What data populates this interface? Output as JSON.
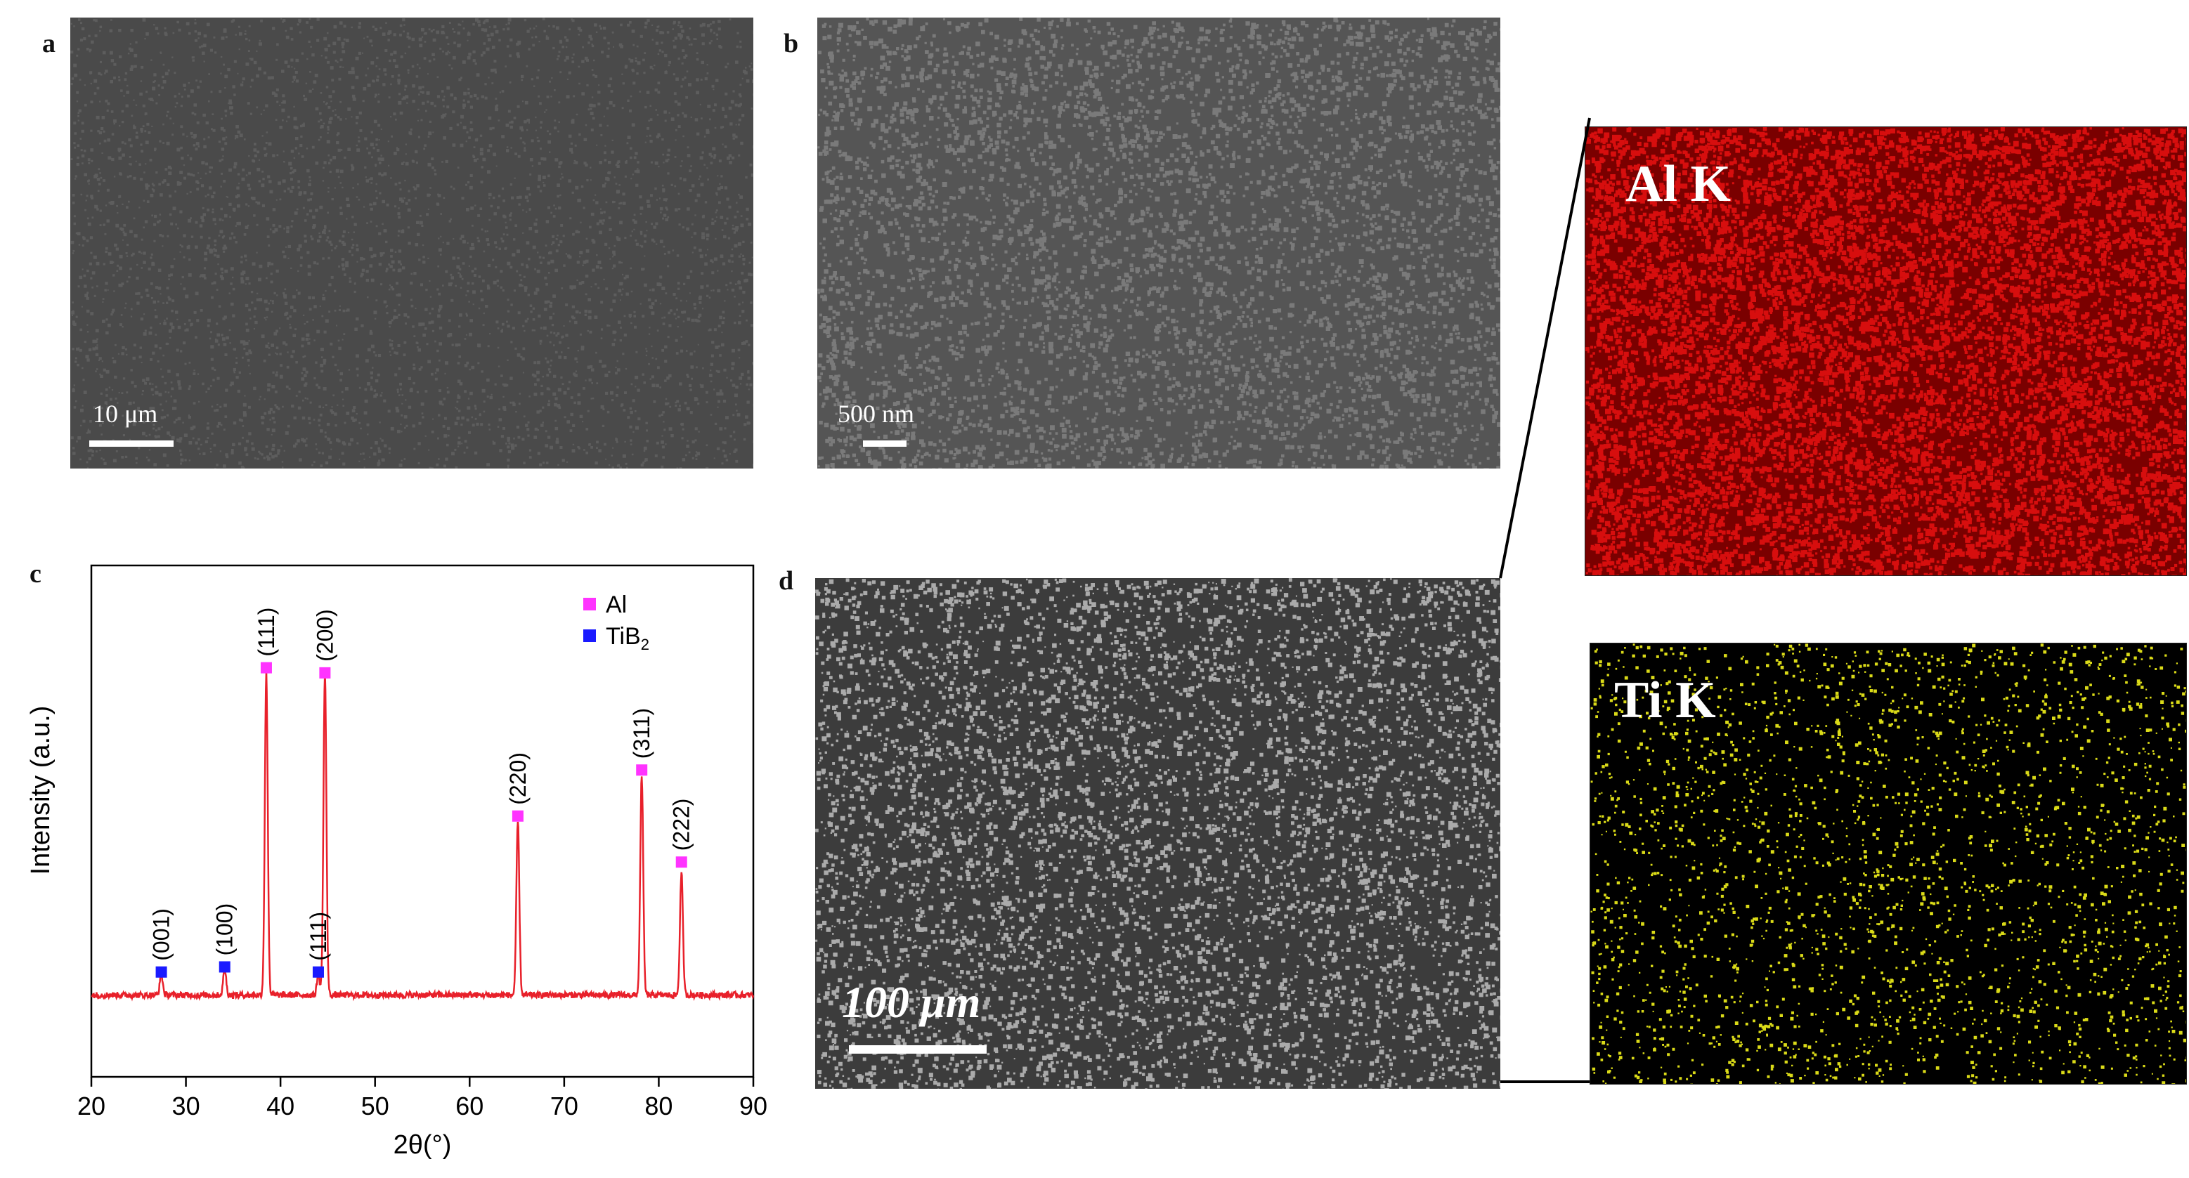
{
  "panels": {
    "a": {
      "letter": "a",
      "scalebar_label": "10 μm",
      "colors": {
        "background": "#4a4a4a",
        "speckle": "#6a6a6a"
      }
    },
    "b": {
      "letter": "b",
      "scalebar_label": "500 nm",
      "colors": {
        "background": "#555555",
        "speckle": "#8a8a8a"
      }
    },
    "c": {
      "letter": "c"
    },
    "d": {
      "letter": "d",
      "scalebar_label": "100 μm",
      "colors": {
        "background": "#3c3c3c",
        "speckle": "#cfcfcf"
      }
    },
    "maps": [
      {
        "label": "Al K",
        "color": "#e81010",
        "background": "#7a0000"
      },
      {
        "label": "Ti K",
        "color": "#e6e619",
        "background": "#000000"
      }
    ]
  },
  "chart_data": {
    "type": "line",
    "xlabel": "2θ(°)",
    "ylabel": "Intensity (a.u.)",
    "xlim": [
      20,
      90
    ],
    "xticks": [
      20,
      30,
      40,
      50,
      60,
      70,
      80,
      90
    ],
    "ylim": [
      0,
      100
    ],
    "line_color": "#e8202a",
    "baseline": 16,
    "series": [
      {
        "peaks": [
          {
            "x": 27.4,
            "y": 20
          },
          {
            "x": 34.1,
            "y": 21
          },
          {
            "x": 38.5,
            "y": 79
          },
          {
            "x": 44.0,
            "y": 20
          },
          {
            "x": 44.7,
            "y": 79
          },
          {
            "x": 65.1,
            "y": 50
          },
          {
            "x": 78.2,
            "y": 59
          },
          {
            "x": 82.4,
            "y": 40
          }
        ]
      }
    ],
    "markers": [
      {
        "x": 27.4,
        "y": 20.5,
        "phase": "TiB2",
        "label": "(001)"
      },
      {
        "x": 34.1,
        "y": 21.5,
        "phase": "TiB2",
        "label": "(100)"
      },
      {
        "x": 38.5,
        "y": 80,
        "phase": "Al",
        "label": "(111)"
      },
      {
        "x": 44.0,
        "y": 20.5,
        "phase": "TiB2",
        "label": "(111)"
      },
      {
        "x": 44.7,
        "y": 79,
        "phase": "Al",
        "label": "(200)"
      },
      {
        "x": 65.1,
        "y": 51,
        "phase": "Al",
        "label": "(220)"
      },
      {
        "x": 78.2,
        "y": 60,
        "phase": "Al",
        "label": "(311)"
      },
      {
        "x": 82.4,
        "y": 42,
        "phase": "Al",
        "label": "(222)"
      }
    ],
    "legend": {
      "placement": "top-right",
      "entries": [
        {
          "name": "Al",
          "color": "#ff33ff"
        },
        {
          "name": "TiB",
          "sub": "2",
          "color": "#1a1aff"
        }
      ]
    }
  }
}
